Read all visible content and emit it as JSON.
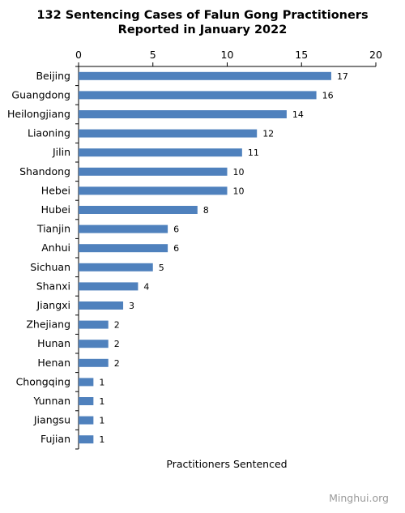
{
  "title_line1": "132 Sentencing Cases of Falun Gong Practitioners",
  "title_line2": "Reported in January 2022",
  "credit": "Minghui.org",
  "colors": {
    "bar": "#4f81bd",
    "axis": "#000000",
    "credit": "#9a9a9a"
  },
  "chart_data": {
    "type": "bar",
    "orientation": "horizontal",
    "title": "132 Sentencing Cases of Falun Gong Practitioners Reported in January 2022",
    "xlabel": "Practitioners Sentenced",
    "ylabel": "",
    "xlim": [
      0,
      20
    ],
    "x_ticks": [
      0,
      5,
      10,
      15,
      20
    ],
    "x_axis_position": "top",
    "grid": false,
    "categories": [
      "Beijing",
      "Guangdong",
      "Heilongjiang",
      "Liaoning",
      "Jilin",
      "Shandong",
      "Hebei",
      "Hubei",
      "Tianjin",
      "Anhui",
      "Sichuan",
      "Shanxi",
      "Jiangxi",
      "Zhejiang",
      "Hunan",
      "Henan",
      "Chongqing",
      "Yunnan",
      "Jiangsu",
      "Fujian"
    ],
    "values": [
      17,
      16,
      14,
      12,
      11,
      10,
      10,
      8,
      6,
      6,
      5,
      4,
      3,
      2,
      2,
      2,
      1,
      1,
      1,
      1
    ]
  }
}
